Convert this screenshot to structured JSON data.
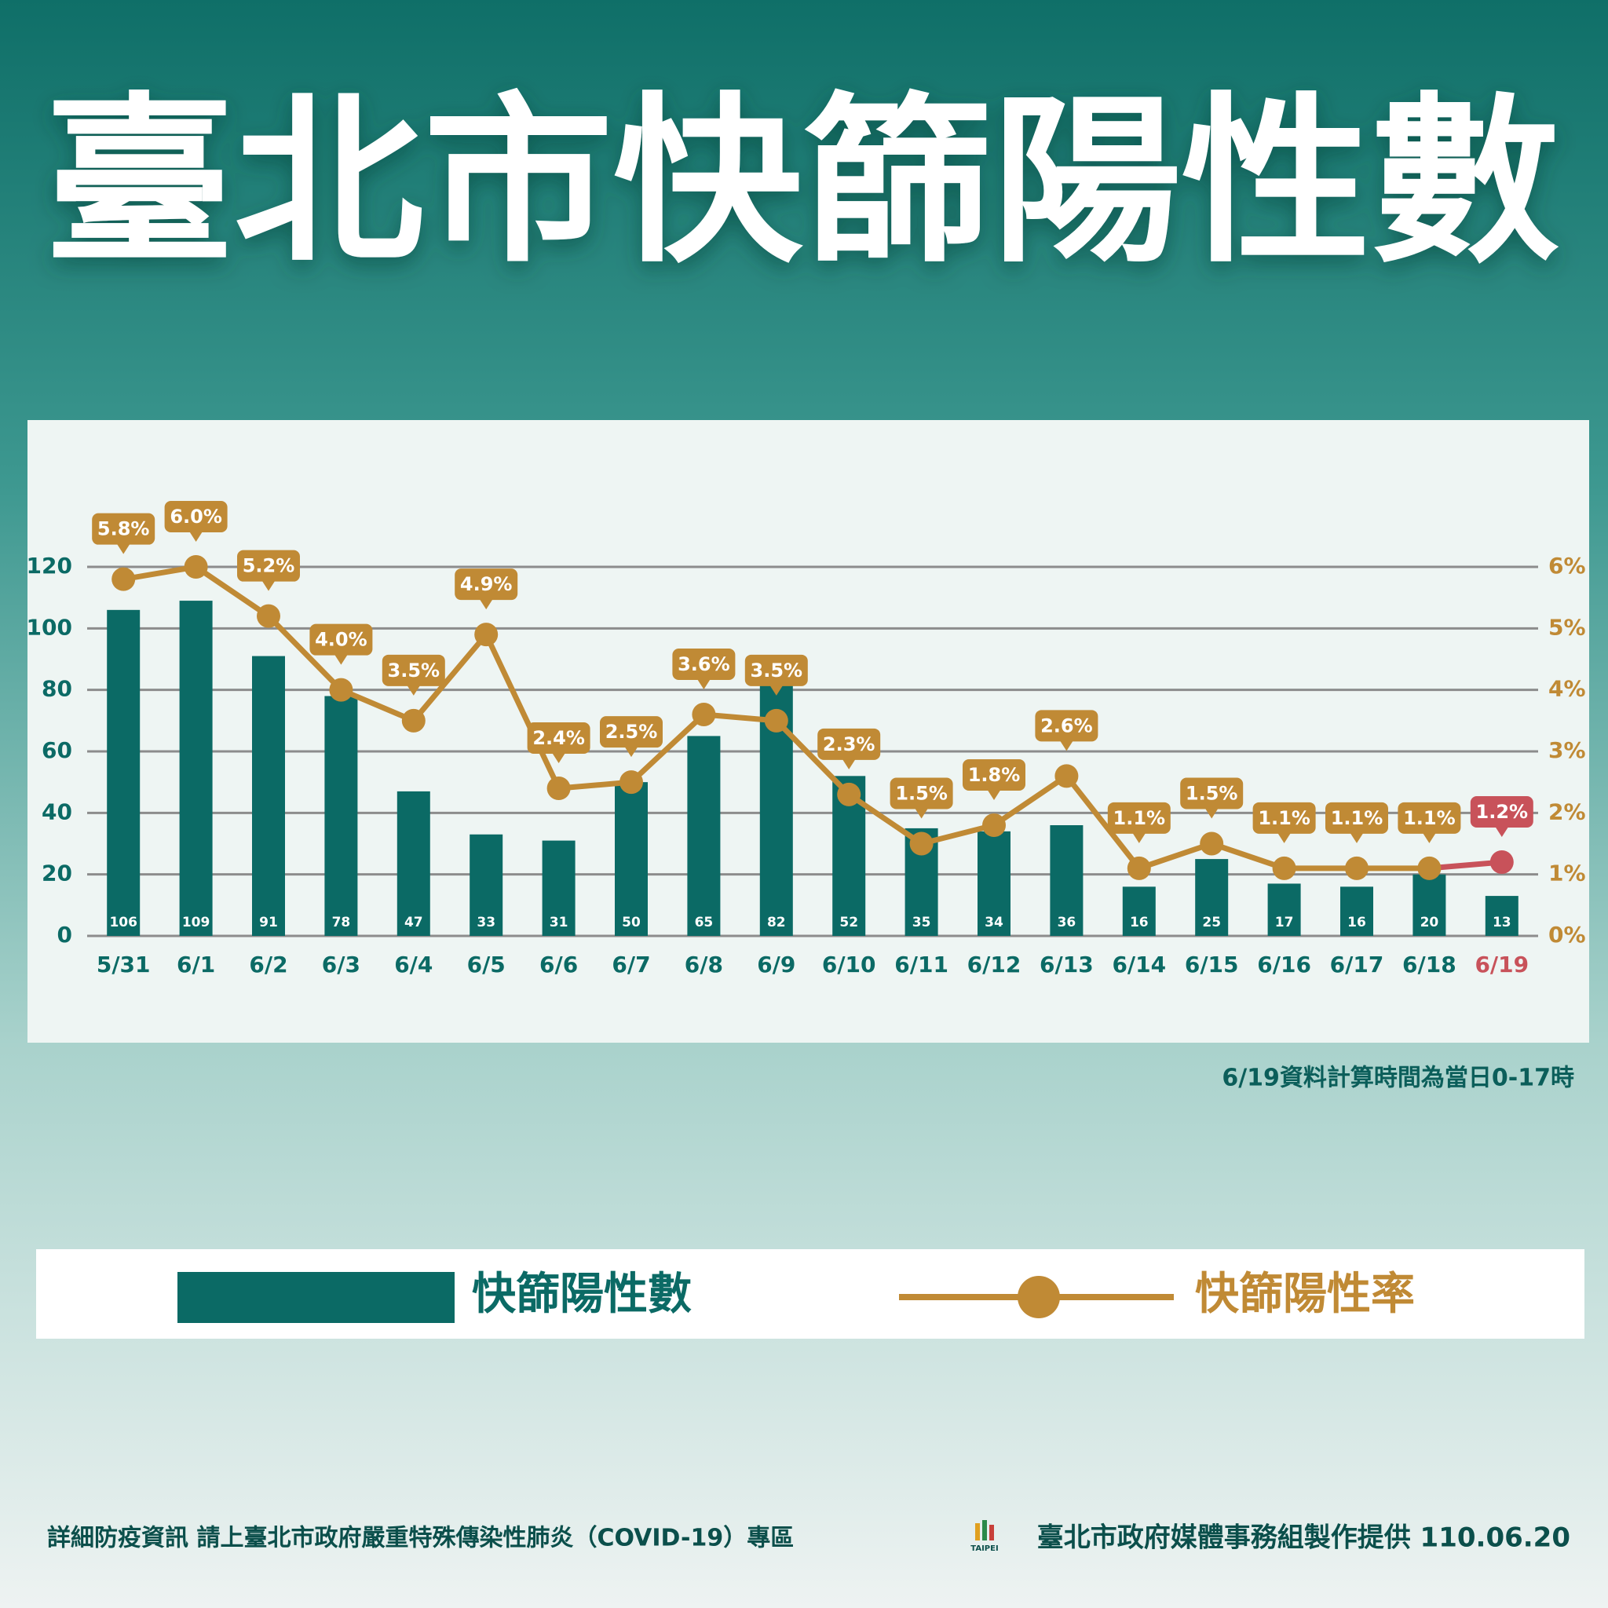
{
  "chart_data": {
    "type": "bar-line",
    "title": "臺北市快篩陽性數",
    "note": "6/19資料計算時間為當日0-17時",
    "categories": [
      "5/31",
      "6/1",
      "6/2",
      "6/3",
      "6/4",
      "6/5",
      "6/6",
      "6/7",
      "6/8",
      "6/9",
      "6/10",
      "6/11",
      "6/12",
      "6/13",
      "6/14",
      "6/15",
      "6/16",
      "6/17",
      "6/18",
      "6/19"
    ],
    "series": [
      {
        "name": "快篩陽性數",
        "type": "bar",
        "color": "#0b6a65",
        "values": [
          106,
          109,
          91,
          78,
          47,
          33,
          31,
          50,
          65,
          82,
          52,
          35,
          34,
          36,
          16,
          25,
          17,
          16,
          20,
          13
        ]
      },
      {
        "name": "快篩陽性率",
        "type": "line",
        "axis": "y2",
        "color": "#c08a35",
        "values": [
          5.8,
          6.0,
          5.2,
          4.0,
          3.5,
          4.9,
          2.4,
          2.5,
          3.6,
          3.5,
          2.3,
          1.5,
          1.8,
          2.6,
          1.1,
          1.5,
          1.1,
          1.1,
          1.1,
          1.2
        ],
        "value_labels": [
          "5.8%",
          "6.0%",
          "5.2%",
          "4.0%",
          "3.5%",
          "4.9%",
          "2.4%",
          "2.5%",
          "3.6%",
          "3.5%",
          "2.3%",
          "1.5%",
          "1.8%",
          "2.6%",
          "1.1%",
          "1.5%",
          "1.1%",
          "1.1%",
          "1.1%",
          "1.2%"
        ]
      }
    ],
    "ylim": [
      0,
      120
    ],
    "yticks": [
      0,
      20,
      40,
      60,
      80,
      100,
      120
    ],
    "y2lim": [
      0,
      6
    ],
    "y2ticks": [
      {
        "value": 0,
        "label": "0%"
      },
      {
        "value": 1,
        "label": "1%"
      },
      {
        "value": 2,
        "label": "2%"
      },
      {
        "value": 3,
        "label": "3%"
      },
      {
        "value": 4,
        "label": "4%"
      },
      {
        "value": 5,
        "label": "5%"
      },
      {
        "value": 6,
        "label": "6%"
      }
    ],
    "grid": true,
    "highlight_last": true,
    "highlight_color": "#c8525a"
  },
  "footer": {
    "info": "詳細防疫資訊 請上臺北市政府嚴重特殊傳染性肺炎（COVID-19）專區",
    "logo": "TAIPEI",
    "credit": "臺北市政府媒體事務組製作提供 110.06.20"
  }
}
